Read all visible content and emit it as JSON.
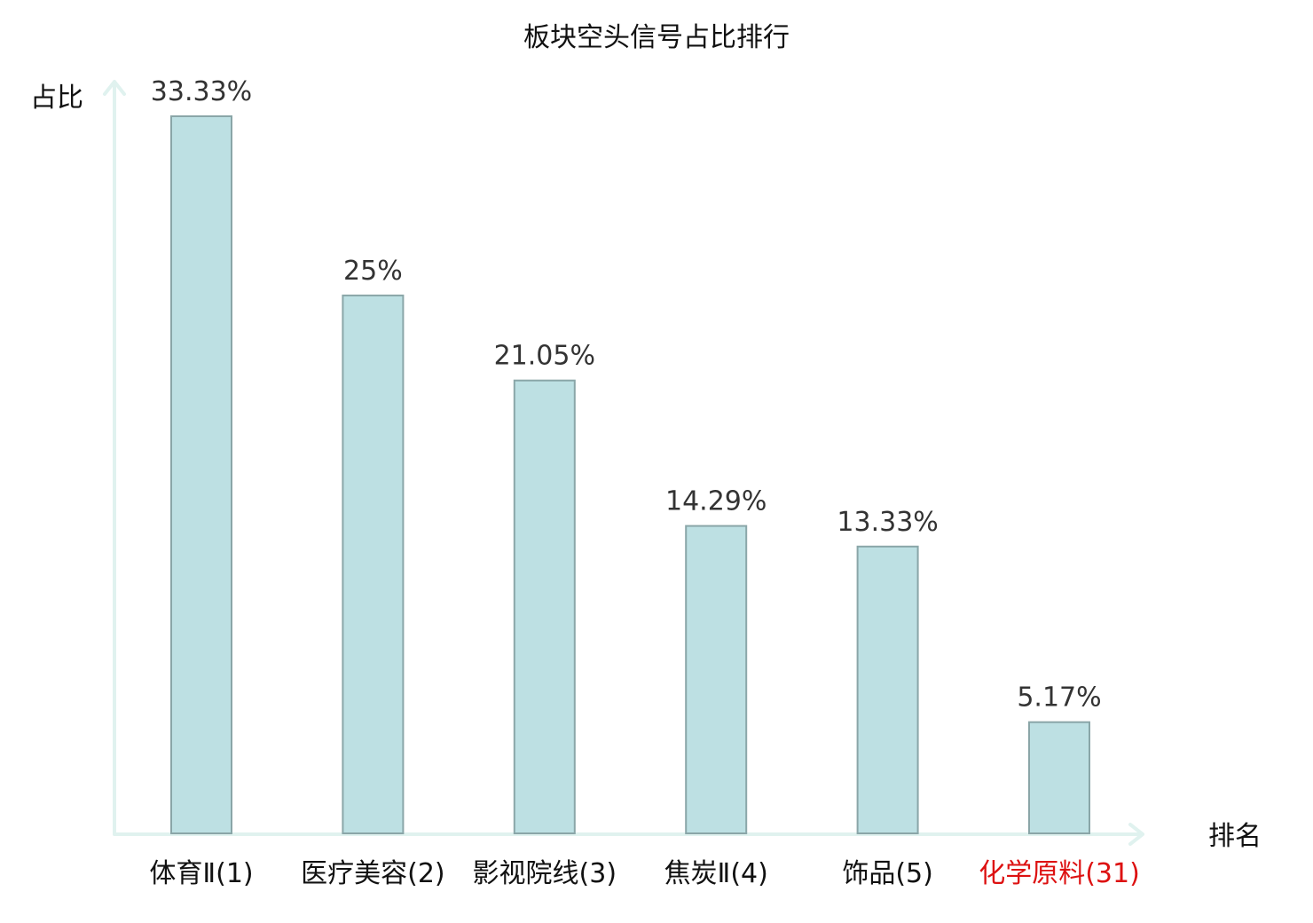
{
  "chart_data": {
    "type": "bar",
    "title": "板块空头信号占比排行",
    "ylabel": "占比",
    "xlabel": "排名",
    "categories": [
      "体育Ⅱ(1)",
      "医疗美容(2)",
      "影视院线(3)",
      "焦炭Ⅱ(4)",
      "饰品(5)",
      "化学原料(31)"
    ],
    "values": [
      33.33,
      25,
      21.05,
      14.29,
      13.33,
      5.17
    ],
    "value_labels": [
      "33.33%",
      "25%",
      "21.05%",
      "14.29%",
      "13.33%",
      "5.17%"
    ],
    "highlight_index": 5,
    "highlight_color": "#dd1111",
    "bar_color": "#bde0e3",
    "bar_edge_color": "#8aa6a8",
    "axis_color": "#e0f2ef",
    "ylim": [
      0,
      34.5
    ],
    "grid": false
  }
}
